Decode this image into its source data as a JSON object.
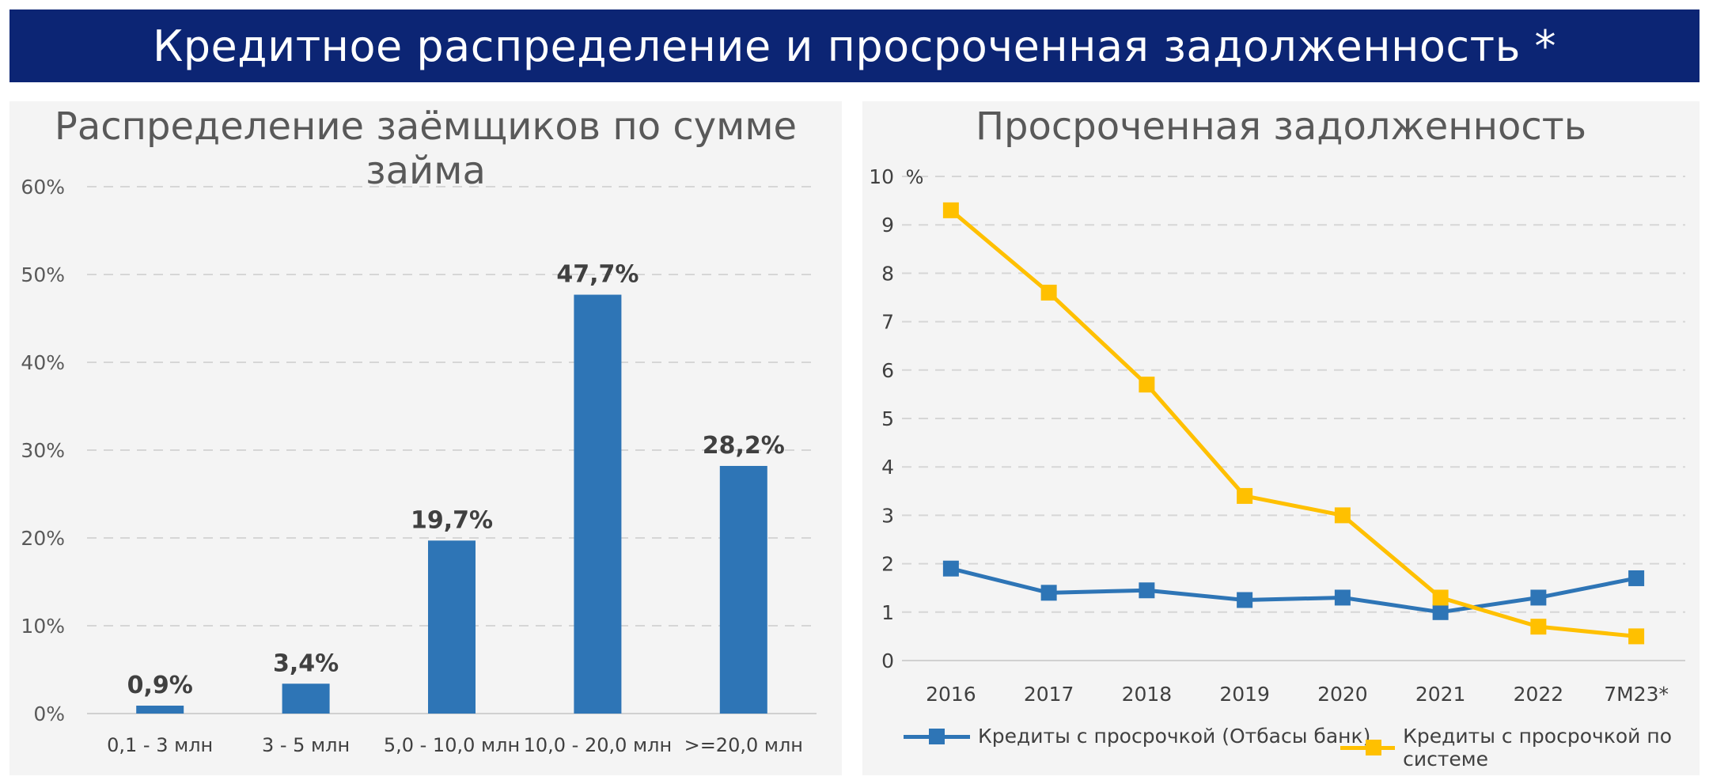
{
  "header": {
    "title": "Кредитное распределение и просроченная задолженность *"
  },
  "colors": {
    "banner": "#0c2574",
    "bar": "#2e75b6",
    "series_bank": "#2e75b6",
    "series_system": "#ffc000"
  },
  "chart_data": [
    {
      "type": "bar",
      "title": "Распределение заёмщиков по сумме займа",
      "categories": [
        "0,1 - 3 млн",
        "3 - 5 млн",
        "5,0 - 10,0 млн",
        "10,0 - 20,0 млн",
        ">=20,0 млн"
      ],
      "values": [
        0.9,
        3.4,
        19.7,
        47.7,
        28.2
      ],
      "data_labels": [
        "0,9%",
        "3,4%",
        "19,7%",
        "47,7%",
        "28,2%"
      ],
      "yticks": [
        "0%",
        "10%",
        "20%",
        "30%",
        "40%",
        "50%",
        "60%"
      ],
      "ylim": [
        0,
        60
      ],
      "grid": true
    },
    {
      "type": "line",
      "title": "Просроченная задолженность",
      "unit_label": "%",
      "x": [
        "2016",
        "2017",
        "2018",
        "2019",
        "2020",
        "2021",
        "2022",
        "7M23*"
      ],
      "yticks": [
        "0",
        "1",
        "2",
        "3",
        "4",
        "5",
        "6",
        "7",
        "8",
        "9",
        "10"
      ],
      "ylim": [
        0,
        10
      ],
      "grid": true,
      "legend_position": "bottom",
      "series": [
        {
          "name": "Кредиты с просрочкой (Отбасы банк)",
          "values": [
            1.9,
            1.4,
            1.45,
            1.25,
            1.3,
            1.0,
            1.3,
            1.7
          ]
        },
        {
          "name": "Кредиты с просрочкой по системе",
          "values": [
            9.3,
            7.6,
            5.7,
            3.4,
            3.0,
            1.3,
            0.7,
            0.5
          ]
        }
      ]
    }
  ]
}
